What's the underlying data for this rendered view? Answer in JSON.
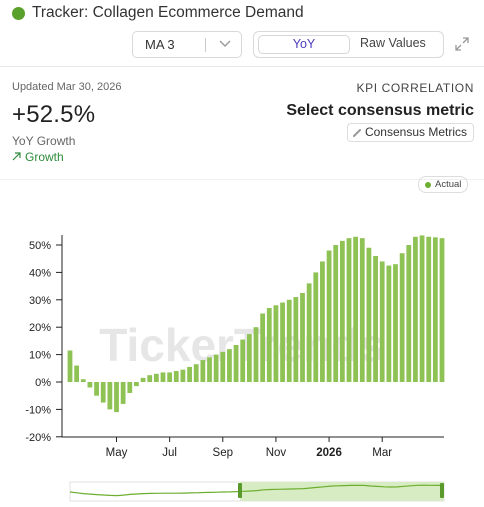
{
  "header": {
    "title": "Tracker: Collagen Ecommerce Demand",
    "ma_value": "MA 3",
    "toggle_active": "YoY",
    "toggle_other": "Raw Values"
  },
  "kpi": {
    "updated": "Updated Mar 30, 2026",
    "value": "+52.5%",
    "label": "YoY Growth",
    "trend": "Growth",
    "correlation_title": "KPI CORRELATION",
    "consensus_title": "Select consensus metric",
    "consensus_button": "Consensus Metrics"
  },
  "colors": {
    "bar": "#8fc255",
    "accent": "#5aa02c",
    "trend_green": "#2e8b3a",
    "toggle_text": "#4a3bbf"
  },
  "watermark": "TickerTrends",
  "chart_data": {
    "type": "bar",
    "series": [
      {
        "name": "Actual",
        "values": [
          11.5,
          6,
          1,
          -2,
          -5,
          -7.5,
          -10,
          -11,
          -8,
          -4,
          -1.5,
          1.5,
          2.5,
          3,
          3.5,
          3.5,
          4,
          4.5,
          5.5,
          6.5,
          8,
          9,
          10,
          11,
          12,
          13.5,
          15.5,
          17.5,
          20,
          25,
          27,
          28,
          29,
          30,
          31,
          32.5,
          36,
          40,
          44,
          48,
          50,
          51.5,
          52.5,
          53,
          52.5,
          49,
          46,
          44,
          42.5,
          43,
          47,
          50,
          53,
          53.5,
          53,
          52.8,
          52.5
        ]
      }
    ],
    "x_ticks": [
      "May",
      "Jul",
      "Sep",
      "Nov",
      "2026",
      "Mar"
    ],
    "y_ticks": [
      "50%",
      "40%",
      "30%",
      "20%",
      "10%",
      "0%",
      "-10%",
      "-20%"
    ],
    "ylim": [
      -20,
      55
    ],
    "legend": [
      "Actual"
    ],
    "grid": false
  }
}
